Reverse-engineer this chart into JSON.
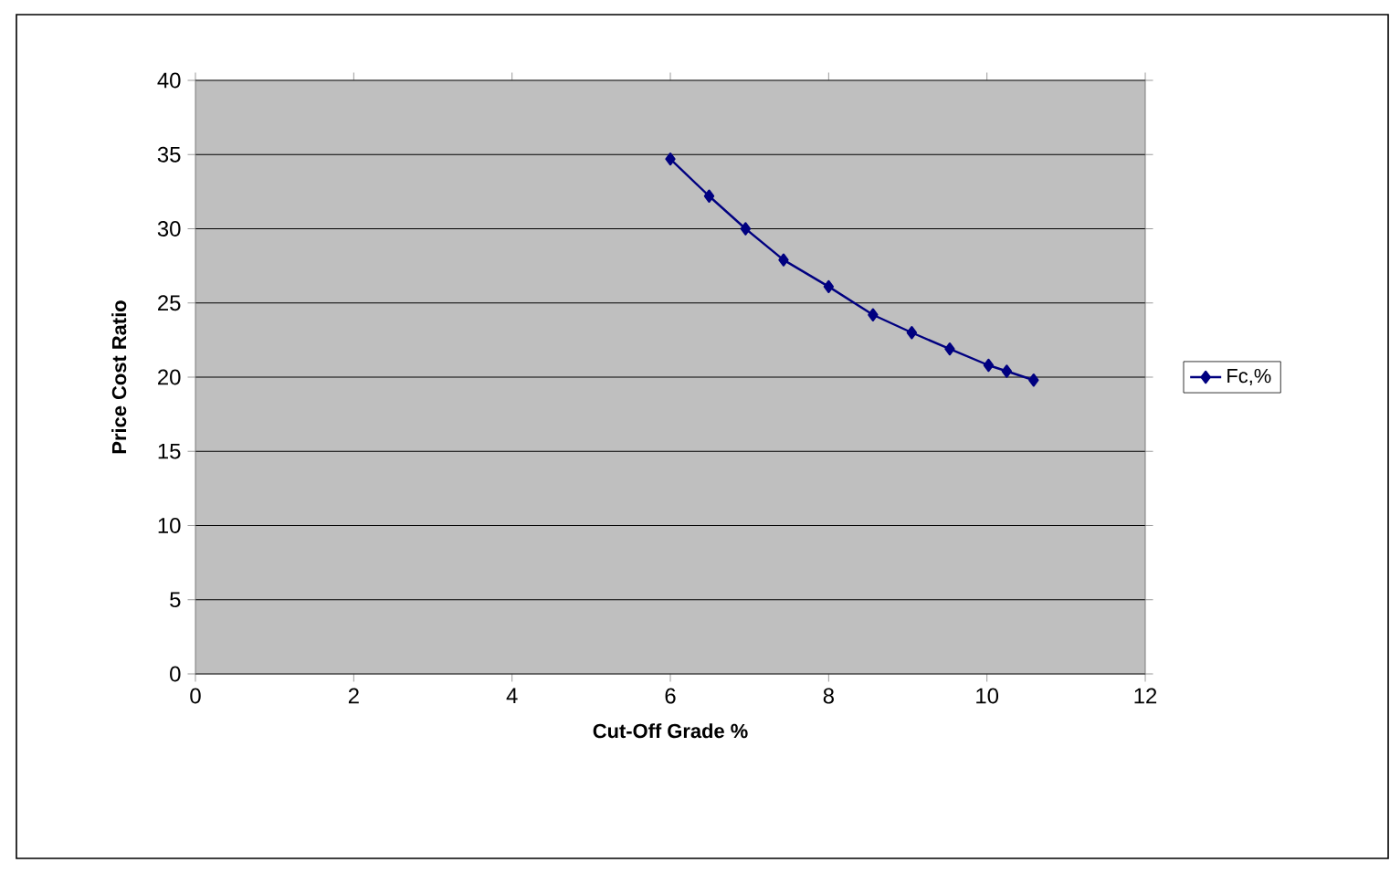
{
  "chart_data": {
    "type": "line",
    "xlabel": "Cut-Off Grade %",
    "ylabel": "Price Cost Ratio",
    "series": [
      {
        "name": "Fc,%",
        "color": "#000080",
        "x": [
          6.0,
          6.49,
          6.95,
          7.43,
          8.0,
          8.56,
          9.05,
          9.53,
          10.02,
          10.25,
          10.59
        ],
        "values": [
          34.7,
          32.2,
          30.0,
          27.9,
          26.1,
          24.2,
          23.0,
          21.9,
          20.8,
          20.4,
          19.8
        ]
      }
    ],
    "xlim": [
      0,
      12
    ],
    "xticks": [
      0,
      2,
      4,
      6,
      8,
      10,
      12
    ],
    "ylim": [
      0,
      40
    ],
    "yticks": [
      0,
      5,
      10,
      15,
      20,
      25,
      30,
      35,
      40
    ],
    "grid": "y",
    "legend": "right",
    "marker": "diamond",
    "line_style": "solid"
  }
}
